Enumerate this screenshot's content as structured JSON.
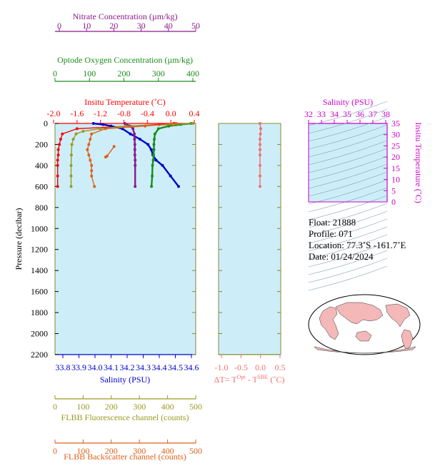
{
  "colors": {
    "nitrate": "#8b1a8b",
    "oxygen": "#1a8c1a",
    "temperature": "#ff0000",
    "salinity": "#0000cc",
    "fluorescence": "#9a9a20",
    "backscatter": "#e0601a",
    "dt": "#f07070",
    "ts": "#cc00cc",
    "panel_bg": "#cdeef8",
    "axis": "#888833"
  },
  "axes": {
    "nitrate": {
      "title": "Nitrate Concentration (µm/kg)",
      "ticks": [
        "0",
        "10",
        "20",
        "30",
        "40",
        "50"
      ]
    },
    "oxygen": {
      "title": "Optode Oxygen Concentration (µm/kg)",
      "ticks": [
        "0",
        "100",
        "200",
        "300",
        "400"
      ]
    },
    "temperature": {
      "title": "Insitu Temperature (˚C)",
      "ticks": [
        "-2.0",
        "-1.6",
        "-1.2",
        "-0.8",
        "-0.4",
        "0.0",
        "0.4"
      ]
    },
    "pressure": {
      "title": "Pressure (decibar)",
      "ticks": [
        "0",
        "200",
        "400",
        "600",
        "800",
        "1000",
        "1200",
        "1400",
        "1600",
        "1800",
        "2000",
        "2200"
      ]
    },
    "salinity": {
      "title": "Salinity (PSU)",
      "ticks": [
        "33.8",
        "33.9",
        "34.0",
        "34.1",
        "34.2",
        "34.3",
        "34.4",
        "34.5",
        "34.6"
      ]
    },
    "dt": {
      "title": "ΔT= T",
      "sup1": "Opt",
      "mid": " - T",
      "sup2": "SBE",
      "tail": " (˚C)",
      "ticks": [
        "-1.0",
        "-0.5",
        "0.0",
        "0.5"
      ]
    },
    "fluorescence": {
      "title": "FLBB Fluorescence channel (counts)",
      "ticks": [
        "0",
        "100",
        "200",
        "300",
        "400",
        "500"
      ]
    },
    "backscatter": {
      "title": "FLBB Backscatter channel (counts)",
      "ticks": [
        "0",
        "100",
        "200",
        "300",
        "400",
        "500"
      ]
    },
    "ts_salinity": {
      "title": "Salinity (PSU)",
      "ticks": [
        "32",
        "33",
        "34",
        "35",
        "36",
        "37",
        "38"
      ]
    },
    "ts_temperature": {
      "title": "Insitu Temperature (˚C)",
      "ticks": [
        "0",
        "5",
        "10",
        "15",
        "20",
        "25",
        "30",
        "35"
      ]
    }
  },
  "info": {
    "float_label": "Float:",
    "float_value": "21888",
    "profile_label": "Profile:",
    "profile_value": "071",
    "location_label": "Location:",
    "location_value": "77.3˚S  -161.7˚E",
    "date_label": "Date:",
    "date_value": "01/24/2024"
  },
  "chart_data": {
    "type": "line",
    "y_axis": {
      "name": "pressure",
      "ylim": [
        2200,
        0
      ]
    },
    "series": [
      {
        "key": "temperature",
        "xlim": [
          -2.0,
          0.4
        ],
        "x": [
          0.05,
          -0.2,
          -0.7,
          -1.6,
          -1.85,
          -1.88,
          -1.9,
          -1.92,
          -1.92,
          -1.93,
          -1.93,
          -1.93,
          -1.93
        ],
        "y": [
          0,
          10,
          25,
          50,
          100,
          150,
          200,
          250,
          300,
          350,
          400,
          500,
          600
        ]
      },
      {
        "key": "salinity",
        "xlim": [
          33.8,
          34.6
        ],
        "x": [
          33.99,
          34.05,
          34.1,
          34.17,
          34.22,
          34.28,
          34.33,
          34.35,
          34.36,
          34.38,
          34.42,
          34.47,
          34.52
        ],
        "y": [
          0,
          10,
          25,
          50,
          100,
          150,
          200,
          250,
          300,
          350,
          400,
          500,
          600
        ]
      },
      {
        "key": "oxygen",
        "xlim": [
          0,
          400
        ],
        "x": [
          395,
          365,
          330,
          300,
          290,
          288,
          287,
          287,
          286,
          285,
          283,
          282,
          280
        ],
        "y": [
          0,
          10,
          25,
          50,
          100,
          150,
          200,
          250,
          300,
          350,
          400,
          500,
          600
        ]
      },
      {
        "key": "nitrate",
        "xlim": [
          0,
          50
        ],
        "x": [
          24,
          26,
          27,
          27.5,
          27.6,
          27.7,
          27.7,
          27.7,
          27.8,
          27.8,
          27.8
        ],
        "y": [
          0,
          25,
          50,
          100,
          150,
          200,
          250,
          300,
          350,
          400,
          600
        ]
      },
      {
        "key": "fluorescence",
        "xlim": [
          0,
          500
        ],
        "x": [
          490,
          420,
          250,
          160,
          100,
          75,
          65,
          60,
          58,
          57,
          57,
          57
        ],
        "y": [
          0,
          10,
          25,
          50,
          75,
          100,
          150,
          200,
          300,
          400,
          500,
          600
        ]
      },
      {
        "key": "backscatter",
        "xlim": [
          0,
          500
        ],
        "x": [
          430,
          320,
          180,
          130,
          125,
          120,
          115,
          120,
          125,
          130,
          130,
          130,
          140
        ],
        "y": [
          0,
          25,
          50,
          100,
          150,
          200,
          250,
          300,
          350,
          400,
          450,
          500,
          600
        ]
      },
      {
        "key": "backscatter",
        "xlim": [
          0,
          500
        ],
        "x": [
          210,
          185,
          180
        ],
        "y": [
          220,
          310,
          320
        ]
      },
      {
        "key": "dt",
        "xlim": [
          -1.2,
          0.6
        ],
        "x": [
          0.0,
          0.02,
          0.01,
          0.0,
          0.0,
          0.0,
          0.0,
          0.0,
          0.0,
          0.0
        ],
        "y": [
          0,
          50,
          100,
          150,
          200,
          250,
          300,
          400,
          500,
          600
        ]
      }
    ]
  }
}
